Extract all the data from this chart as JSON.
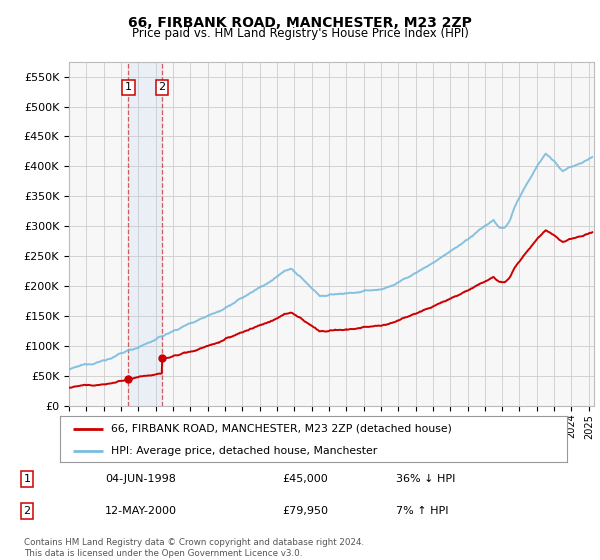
{
  "title": "66, FIRBANK ROAD, MANCHESTER, M23 2ZP",
  "subtitle": "Price paid vs. HM Land Registry's House Price Index (HPI)",
  "ylim": [
    0,
    575000
  ],
  "yticks": [
    0,
    50000,
    100000,
    150000,
    200000,
    250000,
    300000,
    350000,
    400000,
    450000,
    500000,
    550000
  ],
  "ytick_labels": [
    "£0",
    "£50K",
    "£100K",
    "£150K",
    "£200K",
    "£250K",
    "£300K",
    "£350K",
    "£400K",
    "£450K",
    "£500K",
    "£550K"
  ],
  "hpi_color": "#7abcde",
  "price_color": "#cc0000",
  "grid_color": "#cccccc",
  "bg_color": "#ffffff",
  "plot_bg_color": "#f7f7f7",
  "legend_label_price": "66, FIRBANK ROAD, MANCHESTER, M23 2ZP (detached house)",
  "legend_label_hpi": "HPI: Average price, detached house, Manchester",
  "transaction1_date": "04-JUN-1998",
  "transaction1_price": "£45,000",
  "transaction1_hpi": "36% ↓ HPI",
  "transaction1_year": 1998.42,
  "transaction2_date": "12-MAY-2000",
  "transaction2_price": "£79,950",
  "transaction2_hpi": "7% ↑ HPI",
  "transaction2_year": 2000.36,
  "footer": "Contains HM Land Registry data © Crown copyright and database right 2024.\nThis data is licensed under the Open Government Licence v3.0.",
  "xmin": 1995.0,
  "xmax": 2025.3
}
